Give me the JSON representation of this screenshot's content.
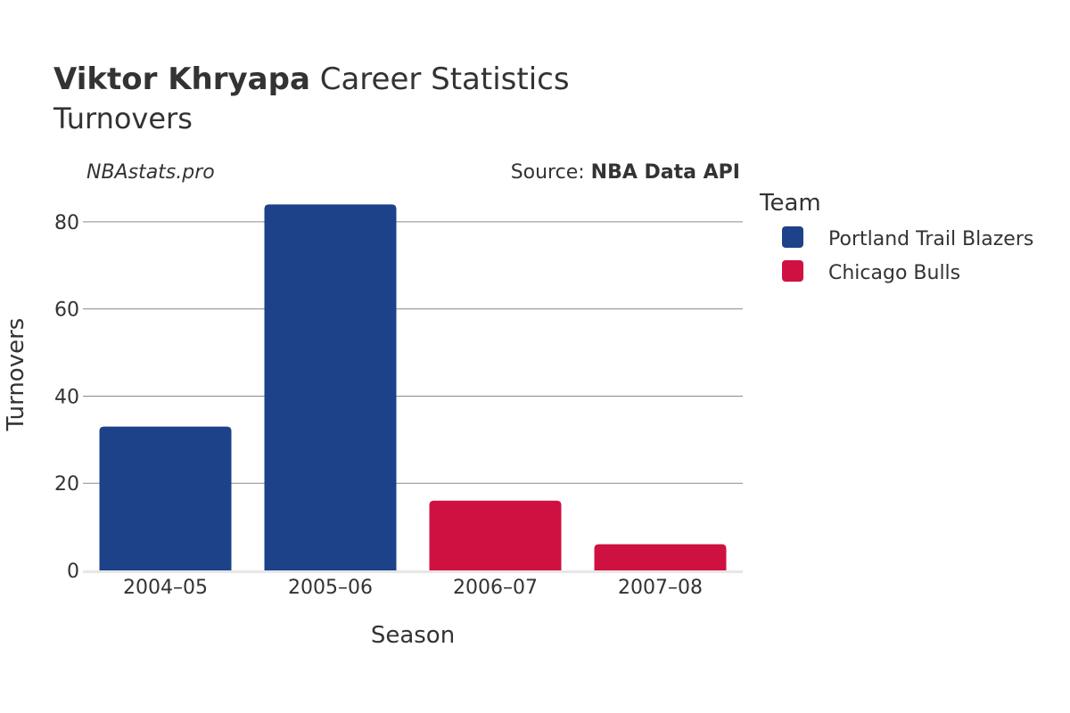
{
  "header": {
    "player_name": "Viktor Khryapa",
    "title_rest": " Career Statistics",
    "subtitle": "Turnovers"
  },
  "watermark": "NBAstats.pro",
  "source": {
    "prefix": "Source: ",
    "name": "NBA Data API"
  },
  "legend": {
    "title": "Team",
    "items": [
      {
        "label": "Portland Trail Blazers",
        "color": "#1D428A"
      },
      {
        "label": "Chicago Bulls",
        "color": "#CE1141"
      }
    ]
  },
  "chart_data": {
    "type": "bar",
    "title": "Viktor Khryapa Career Statistics",
    "subtitle": "Turnovers",
    "xlabel": "Season",
    "ylabel": "Turnovers",
    "categories": [
      "2004–05",
      "2005–06",
      "2006–07",
      "2007–08"
    ],
    "values": [
      33,
      84,
      16,
      6
    ],
    "teams": [
      "Portland Trail Blazers",
      "Portland Trail Blazers",
      "Chicago Bulls",
      "Chicago Bulls"
    ],
    "colors": [
      "#1D428A",
      "#1D428A",
      "#CE1141",
      "#CE1141"
    ],
    "ylim": [
      0,
      90
    ],
    "yticks": [
      0,
      20,
      40,
      60,
      80
    ],
    "grid": true,
    "legend_position": "right"
  }
}
